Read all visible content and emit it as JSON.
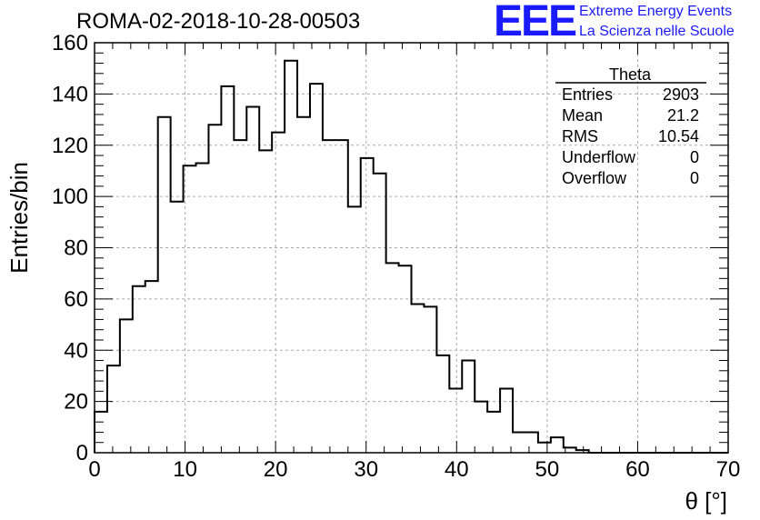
{
  "header": {
    "run_title": "ROMA-02-2018-10-28-00503",
    "logo_text": "EEE",
    "logo_line1": "Extreme Energy Events",
    "logo_line2": "La Scienza nelle Scuole",
    "logo_color": "#1a1aff"
  },
  "stats": {
    "name": "Theta",
    "rows": [
      {
        "label": "Entries",
        "value": "2903"
      },
      {
        "label": "Mean",
        "value": "21.2"
      },
      {
        "label": "RMS",
        "value": "10.54"
      },
      {
        "label": "Underflow",
        "value": "0"
      },
      {
        "label": "Overflow",
        "value": "0"
      }
    ]
  },
  "chart_data": {
    "type": "histogram",
    "xlabel": "θ [°]",
    "ylabel": "Entries/bin",
    "xlim": [
      0,
      70
    ],
    "ylim": [
      0,
      160
    ],
    "x_ticks": [
      0,
      10,
      20,
      30,
      40,
      50,
      60,
      70
    ],
    "y_ticks": [
      0,
      20,
      40,
      60,
      80,
      100,
      120,
      140,
      160
    ],
    "grid": true,
    "bin_width": 1.4,
    "bin_start": 0,
    "values": [
      16,
      34,
      52,
      65,
      67,
      131,
      98,
      112,
      113,
      128,
      143,
      122,
      135,
      118,
      125,
      153,
      131,
      144,
      122,
      122,
      96,
      115,
      109,
      74,
      73,
      58,
      57,
      38,
      25,
      36,
      20,
      16,
      25,
      8,
      8,
      4,
      6,
      2,
      1,
      0,
      0,
      0,
      0,
      0,
      0,
      0,
      0,
      0,
      0,
      0
    ],
    "line_color": "#000000"
  }
}
